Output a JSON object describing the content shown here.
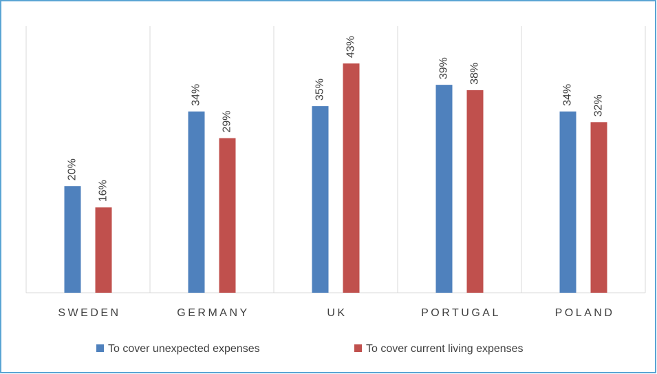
{
  "chart_data": {
    "type": "bar",
    "categories": [
      "SWEDEN",
      "GERMANY",
      "UK",
      "PORTUGAL",
      "POLAND"
    ],
    "series": [
      {
        "name": "To cover unexpected expenses",
        "color": "#4f81bd",
        "values": [
          20,
          34,
          35,
          39,
          34
        ],
        "value_labels": [
          "20%",
          "34%",
          "35%",
          "39%",
          "34%"
        ]
      },
      {
        "name": "To cover current living expenses",
        "color": "#c0504d",
        "values": [
          16,
          29,
          43,
          38,
          32
        ],
        "value_labels": [
          "16%",
          "29%",
          "43%",
          "38%",
          "32%"
        ]
      }
    ],
    "ylim": [
      0,
      50
    ],
    "grid": true
  }
}
